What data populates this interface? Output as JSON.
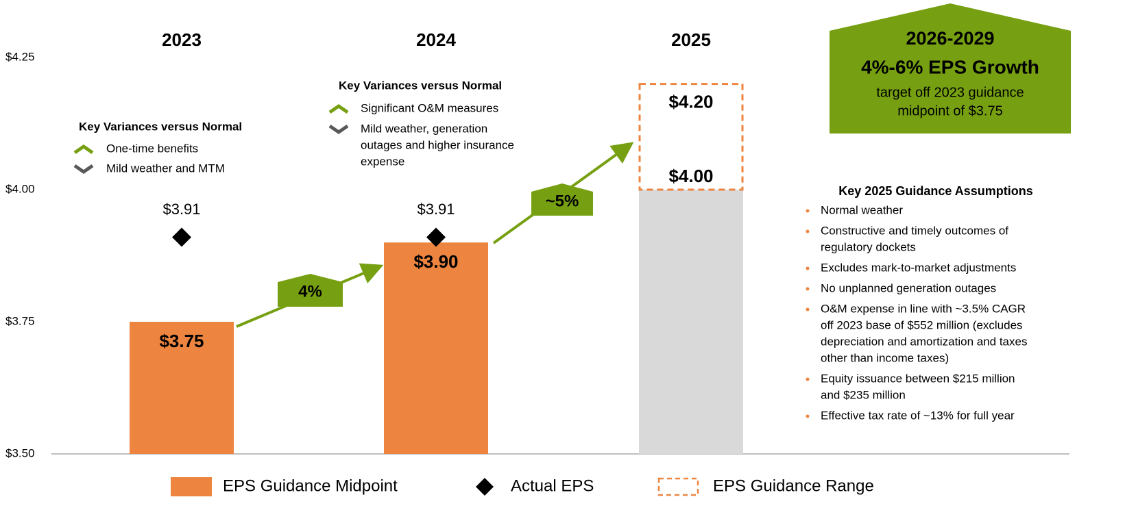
{
  "chart_data": {
    "type": "bar",
    "categories": [
      "2023",
      "2024",
      "2025"
    ],
    "ylim": [
      3.5,
      4.25
    ],
    "yticks": [
      {
        "value": 3.5,
        "label": "$3.50"
      },
      {
        "value": 3.75,
        "label": "$3.75"
      },
      {
        "value": 4.0,
        "label": "$4.00"
      },
      {
        "value": 4.25,
        "label": "$4.25"
      }
    ],
    "series": [
      {
        "name": "EPS Guidance Midpoint",
        "color": "#ed8541",
        "values": [
          3.75,
          3.9,
          null
        ],
        "value_labels": [
          "$3.75",
          "$3.90",
          null
        ]
      },
      {
        "name": "Actual EPS",
        "color": "#000000",
        "values": [
          3.91,
          3.91,
          null
        ],
        "value_labels": [
          "$3.91",
          "$3.91",
          null
        ]
      },
      {
        "name": "EPS Guidance Range",
        "color": "#ed8541",
        "fill": "#d9d9d9",
        "low": [
          null,
          null,
          4.0
        ],
        "high": [
          null,
          null,
          4.2
        ],
        "low_labels": [
          null,
          null,
          "$4.00"
        ],
        "high_labels": [
          null,
          null,
          "$4.20"
        ]
      }
    ],
    "growth_labels": [
      "4%",
      "~5%"
    ],
    "growth_color": "#76a012",
    "variances": [
      {
        "title": "Key Variances versus Normal",
        "up": [
          "One-time benefits"
        ],
        "down": [
          "Mild weather and MTM"
        ]
      },
      {
        "title": "Key Variances versus Normal",
        "up": [
          "Significant O&M measures"
        ],
        "down": [
          "Mild weather, generation",
          "outages and higher insurance",
          "expense"
        ]
      }
    ]
  },
  "callout": {
    "title": "2026-2029",
    "headline": "4%-6% EPS Growth",
    "text": [
      "target off 2023 guidance",
      "midpoint of $3.75"
    ]
  },
  "assumptions": {
    "title": "Key 2025 Guidance Assumptions",
    "items": [
      [
        "Normal weather"
      ],
      [
        "Constructive and timely outcomes of",
        "regulatory dockets"
      ],
      [
        "Excludes mark-to-market adjustments"
      ],
      [
        "No unplanned generation outages"
      ],
      [
        "O&M expense in line with ~3.5% CAGR",
        "off 2023 base of $552 million (excludes",
        "depreciation and amortization and taxes",
        "other than income taxes)"
      ],
      [
        "Equity issuance between $215 million",
        "and $235 million"
      ],
      [
        "Effective tax rate of ~13% for full year"
      ]
    ]
  }
}
